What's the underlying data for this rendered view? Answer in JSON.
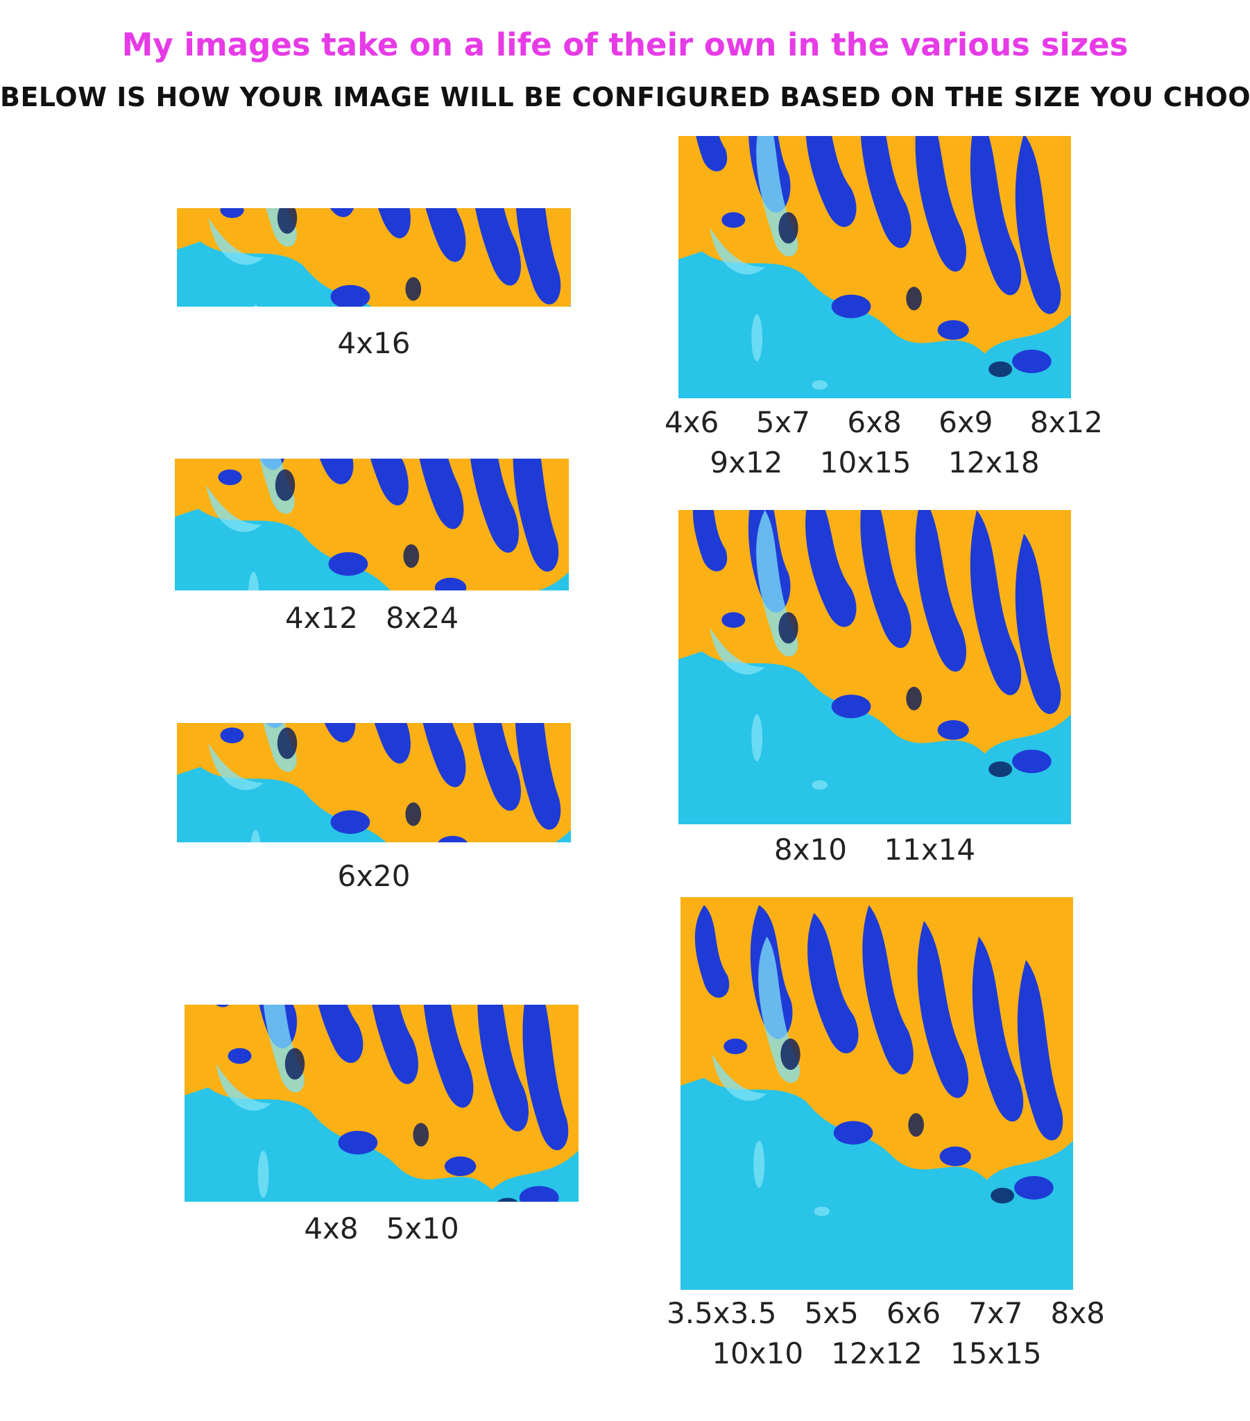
{
  "header": {
    "headline": "My images take on a life of their own in the various sizes",
    "subheadline": "BELOW IS HOW YOUR IMAGE WILL BE CONFIGURED BASED ON THE SIZE YOU CHOOSE"
  },
  "colors": {
    "headline": "#e63be6",
    "subheadline": "#111111",
    "paint_yellow": "#fbb116",
    "paint_cyan": "#29c4e8",
    "paint_blue": "#1f3bd6"
  },
  "previews": [
    {
      "caption": "4x16"
    },
    {
      "caption": "4x12   8x24"
    },
    {
      "caption": "6x20"
    },
    {
      "caption": "4x8   5x10"
    },
    {
      "caption": "4x6    5x7    6x8    6x9    8x12\n9x12    10x15    12x18"
    },
    {
      "caption": "8x10    11x14"
    },
    {
      "caption": "3.5x3.5   5x5   6x6   7x7   8x8\n10x10   12x12   15x15"
    }
  ]
}
